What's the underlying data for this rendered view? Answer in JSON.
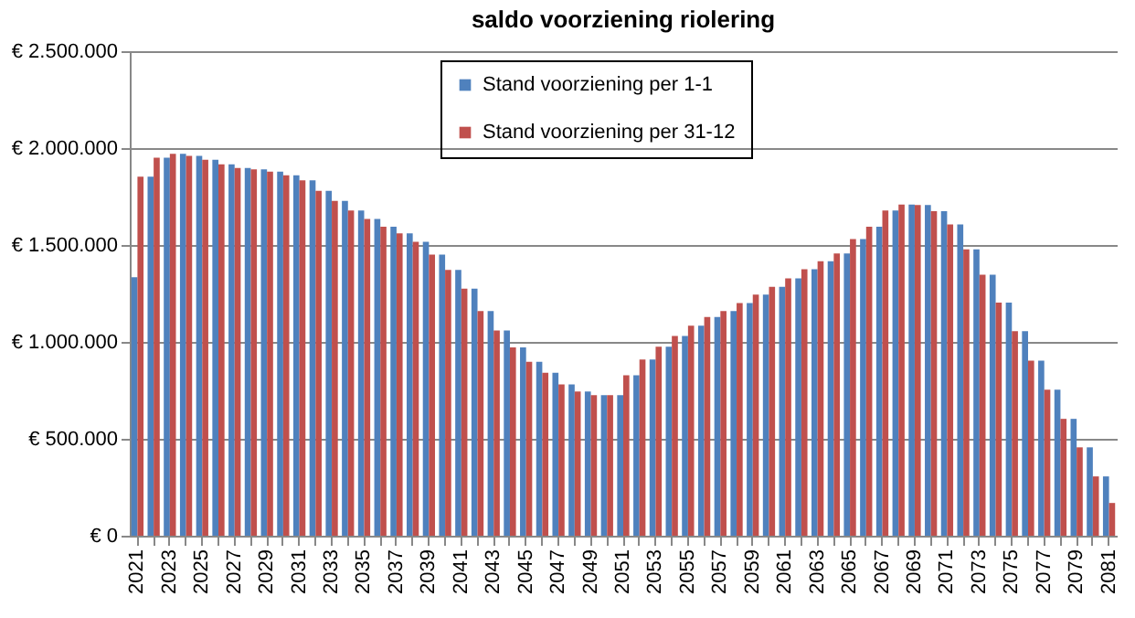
{
  "chart_data": {
    "type": "bar",
    "title": "saldo voorziening riolering",
    "categories": [
      "2021",
      null,
      "2023",
      null,
      "2025",
      null,
      "2027",
      null,
      "2029",
      null,
      "2031",
      null,
      "2033",
      null,
      "2035",
      null,
      "2037",
      null,
      "2039",
      null,
      "2041",
      null,
      "2043",
      null,
      "2045",
      null,
      "2047",
      null,
      "2049",
      null,
      "2051",
      null,
      "2053",
      null,
      "2055",
      null,
      "2057",
      null,
      "2059",
      null,
      "2061",
      null,
      "2063",
      null,
      "2065",
      null,
      "2067",
      null,
      "2069",
      null,
      "2071",
      null,
      "2073",
      null,
      "2075",
      null,
      "2077",
      null,
      "2079",
      null,
      "2081"
    ],
    "series": [
      {
        "name": "Stand voorziening per 1-1",
        "color": "#4f81bd",
        "values": [
          1334000,
          1853000,
          1950000,
          1970000,
          1960000,
          1940000,
          1916000,
          1897000,
          1890000,
          1878000,
          1860000,
          1834000,
          1780000,
          1728000,
          1678000,
          1634000,
          1594000,
          1560000,
          1516000,
          1450000,
          1372000,
          1275000,
          1159000,
          1059000,
          972000,
          897000,
          841000,
          781000,
          744000,
          725000,
          725000,
          828000,
          909000,
          975000,
          1031000,
          1084000,
          1128000,
          1159000,
          1200000,
          1244000,
          1284000,
          1328000,
          1375000,
          1416000,
          1456000,
          1531000,
          1594000,
          1678000,
          1709000,
          1706000,
          1675000,
          1606000,
          1478000,
          1347000,
          1203000,
          1056000,
          903000,
          753000,
          603000,
          456000,
          306000
        ]
      },
      {
        "name": "Stand voorziening per 31-12",
        "color": "#c0504d",
        "values": [
          1853000,
          1950000,
          1970000,
          1960000,
          1940000,
          1916000,
          1897000,
          1890000,
          1878000,
          1860000,
          1834000,
          1780000,
          1728000,
          1678000,
          1634000,
          1594000,
          1560000,
          1516000,
          1450000,
          1372000,
          1275000,
          1159000,
          1059000,
          972000,
          897000,
          841000,
          781000,
          744000,
          725000,
          725000,
          828000,
          909000,
          975000,
          1031000,
          1084000,
          1128000,
          1159000,
          1200000,
          1244000,
          1284000,
          1328000,
          1375000,
          1416000,
          1456000,
          1531000,
          1594000,
          1678000,
          1709000,
          1706000,
          1675000,
          1606000,
          1478000,
          1347000,
          1203000,
          1056000,
          903000,
          753000,
          603000,
          456000,
          306000,
          169000
        ]
      }
    ],
    "ylim": [
      0,
      2500000
    ],
    "yticks": [
      {
        "value": 0,
        "label": "€ 0"
      },
      {
        "value": 500000,
        "label": "€ 500.000"
      },
      {
        "value": 1000000,
        "label": "€ 1.000.000"
      },
      {
        "value": 1500000,
        "label": "€ 1.500.000"
      },
      {
        "value": 2000000,
        "label": "€ 2.000.000"
      },
      {
        "value": 2500000,
        "label": "€ 2.500.000"
      }
    ],
    "grid": "y",
    "legend": "top"
  }
}
